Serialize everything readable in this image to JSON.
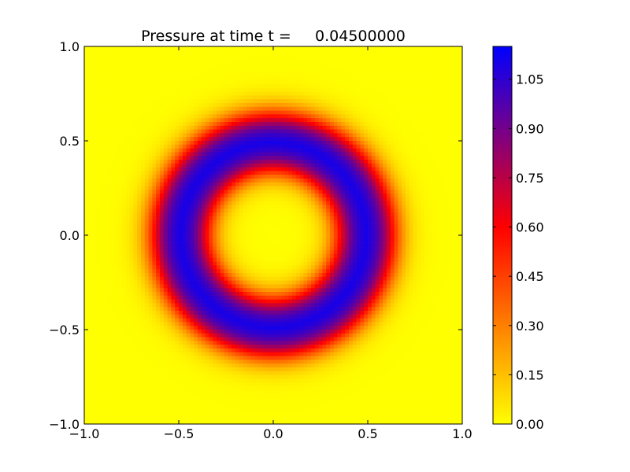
{
  "chart_data": {
    "type": "heatmap",
    "title": "Pressure at time t =     0.04500000",
    "xlabel": "",
    "ylabel": "",
    "xlim": [
      -1.0,
      1.0
    ],
    "ylim": [
      -1.0,
      1.0
    ],
    "x_ticks": [
      "−1.0",
      "−0.5",
      "0.0",
      "0.5",
      "1.0"
    ],
    "x_tick_values": [
      -1.0,
      -0.5,
      0.0,
      0.5,
      1.0
    ],
    "y_ticks": [
      "−1.0",
      "−0.5",
      "0.0",
      "0.5",
      "1.0"
    ],
    "y_tick_values": [
      -1.0,
      -0.5,
      0.0,
      0.5,
      1.0
    ],
    "field": {
      "description_shape": "ring",
      "center": [
        0.0,
        0.0
      ],
      "ring_radius": 0.49,
      "ring_half_width": 0.14,
      "edge_softness": 0.045,
      "peak_value": 1.15,
      "background_value": 0.0,
      "grid_cells": 100
    },
    "colorbar": {
      "vmin": 0.0,
      "vmax": 1.15,
      "ticks": [
        "0.00",
        "0.15",
        "0.30",
        "0.45",
        "0.60",
        "0.75",
        "0.90",
        "1.05"
      ],
      "tick_values": [
        0.0,
        0.15,
        0.3,
        0.45,
        0.6,
        0.75,
        0.9,
        1.05
      ],
      "colormap_stops": [
        {
          "v": 0.0,
          "color": "#ffff00"
        },
        {
          "v": 0.6,
          "color": "#ff0000"
        },
        {
          "v": 1.15,
          "color": "#0000ff"
        }
      ]
    },
    "grid": false,
    "legend": "none"
  }
}
